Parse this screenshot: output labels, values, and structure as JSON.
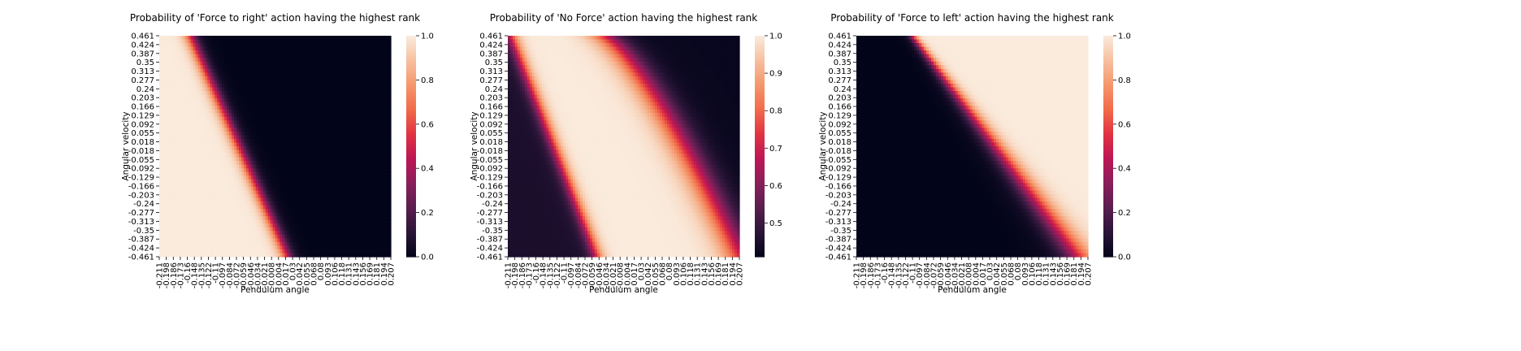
{
  "figure": {
    "background": "#ffffff"
  },
  "chart_data": [
    {
      "type": "heatmap",
      "title": "Probability of 'Force to right' action having the highest rank",
      "xlabel": "Pendulum angle",
      "ylabel": "Angular velocity",
      "x_ticks": [
        "-0.211",
        "-0.198",
        "-0.186",
        "-0.173",
        "-0.16",
        "-0.148",
        "-0.135",
        "-0.122",
        "-0.11",
        "-0.097",
        "-0.084",
        "-0.072",
        "-0.059",
        "-0.046",
        "-0.034",
        "-0.021",
        "-0.008",
        "0.004",
        "0.017",
        "0.03",
        "0.042",
        "0.055",
        "0.068",
        "0.08",
        "0.093",
        "0.106",
        "0.118",
        "0.131",
        "0.143",
        "0.156",
        "0.169",
        "0.181",
        "0.194",
        "0.207"
      ],
      "y_ticks": [
        "0.461",
        "0.424",
        "0.387",
        "0.35",
        "0.313",
        "0.277",
        "0.24",
        "0.203",
        "0.166",
        "0.129",
        "0.092",
        "0.055",
        "0.018",
        "-0.018",
        "-0.055",
        "-0.092",
        "-0.129",
        "-0.166",
        "-0.203",
        "-0.24",
        "-0.277",
        "-0.313",
        "-0.35",
        "-0.387",
        "-0.424",
        "-0.461"
      ],
      "colorbar": {
        "min": 0.0,
        "max": 1.0,
        "ticks": [
          "0.0",
          "0.2",
          "0.4",
          "0.6",
          "0.8",
          "1.0"
        ]
      },
      "boundary_angle_at_velocity_top": -0.155,
      "boundary_angle_at_velocity_bottom": 0.02,
      "transition_width": 0.03,
      "low_value": 0.0,
      "high_value": 1.0,
      "high_side": "left"
    },
    {
      "type": "heatmap",
      "title": "Probability of 'No Force' action having the highest rank",
      "xlabel": "Pendulum angle",
      "ylabel": "Angular velocity",
      "x_ticks": [
        "-0.211",
        "-0.198",
        "-0.186",
        "-0.173",
        "-0.16",
        "-0.148",
        "-0.135",
        "-0.122",
        "-0.11",
        "-0.097",
        "-0.084",
        "-0.072",
        "-0.059",
        "-0.046",
        "-0.034",
        "-0.021",
        "-0.008",
        "0.004",
        "0.017",
        "0.03",
        "0.042",
        "0.055",
        "0.068",
        "0.08",
        "0.093",
        "0.106",
        "0.118",
        "0.131",
        "0.143",
        "0.156",
        "0.169",
        "0.181",
        "0.194",
        "0.207"
      ],
      "y_ticks": [
        "0.461",
        "0.424",
        "0.387",
        "0.35",
        "0.313",
        "0.277",
        "0.24",
        "0.203",
        "0.166",
        "0.129",
        "0.092",
        "0.055",
        "0.018",
        "-0.018",
        "-0.055",
        "-0.092",
        "-0.129",
        "-0.166",
        "-0.203",
        "-0.24",
        "-0.277",
        "-0.313",
        "-0.35",
        "-0.387",
        "-0.424",
        "-0.461"
      ],
      "colorbar": {
        "min": 0.41,
        "max": 1.0,
        "ticks": [
          "0.5",
          "0.6",
          "0.7",
          "0.8",
          "0.9",
          "1.0"
        ],
        "tick_values": [
          0.5,
          0.6,
          0.7,
          0.8,
          0.9,
          1.0
        ]
      },
      "left_band": {
        "boundary_angle_at_velocity_top": -0.205,
        "boundary_angle_at_velocity_bottom": -0.05,
        "transition_width": 0.03,
        "dark_value": 0.45
      },
      "right_band": {
        "boundary_angle_at_velocity_top": -0.04,
        "boundary_angle_at_velocity_bottom": 0.207,
        "transition_width": 0.07,
        "dark_value": 0.42
      },
      "high_value": 1.0
    },
    {
      "type": "heatmap",
      "title": "Probability of 'Force to left' action having the highest rank",
      "xlabel": "Pendulum angle",
      "ylabel": "Angular velocity",
      "x_ticks": [
        "-0.211",
        "-0.198",
        "-0.186",
        "-0.173",
        "-0.16",
        "-0.148",
        "-0.135",
        "-0.122",
        "-0.11",
        "-0.097",
        "-0.084",
        "-0.072",
        "-0.059",
        "-0.046",
        "-0.034",
        "-0.021",
        "-0.008",
        "0.004",
        "0.017",
        "0.03",
        "0.042",
        "0.055",
        "0.068",
        "0.08",
        "0.093",
        "0.106",
        "0.118",
        "0.131",
        "0.143",
        "0.156",
        "0.169",
        "0.181",
        "0.194",
        "0.207"
      ],
      "y_ticks": [
        "0.461",
        "0.424",
        "0.387",
        "0.35",
        "0.313",
        "0.277",
        "0.24",
        "0.203",
        "0.166",
        "0.129",
        "0.092",
        "0.055",
        "0.018",
        "-0.018",
        "-0.055",
        "-0.092",
        "-0.129",
        "-0.166",
        "-0.203",
        "-0.24",
        "-0.277",
        "-0.313",
        "-0.35",
        "-0.387",
        "-0.424",
        "-0.461"
      ],
      "colorbar": {
        "min": 0.0,
        "max": 1.0,
        "ticks": [
          "0.0",
          "0.2",
          "0.4",
          "0.6",
          "0.8",
          "1.0"
        ]
      },
      "boundary_angle_at_velocity_top": -0.11,
      "boundary_angle_at_velocity_bottom": 0.19,
      "transition_width": 0.055,
      "low_value": 0.0,
      "high_value": 1.0,
      "high_side": "right"
    }
  ],
  "colormap": {
    "name": "rocket",
    "stops": [
      "#03051a",
      "#2b1538",
      "#5a1e4f",
      "#8a1f5b",
      "#bd1655",
      "#e13342",
      "#f26b4a",
      "#f5976c",
      "#f6c0a0",
      "#faebdd"
    ]
  }
}
